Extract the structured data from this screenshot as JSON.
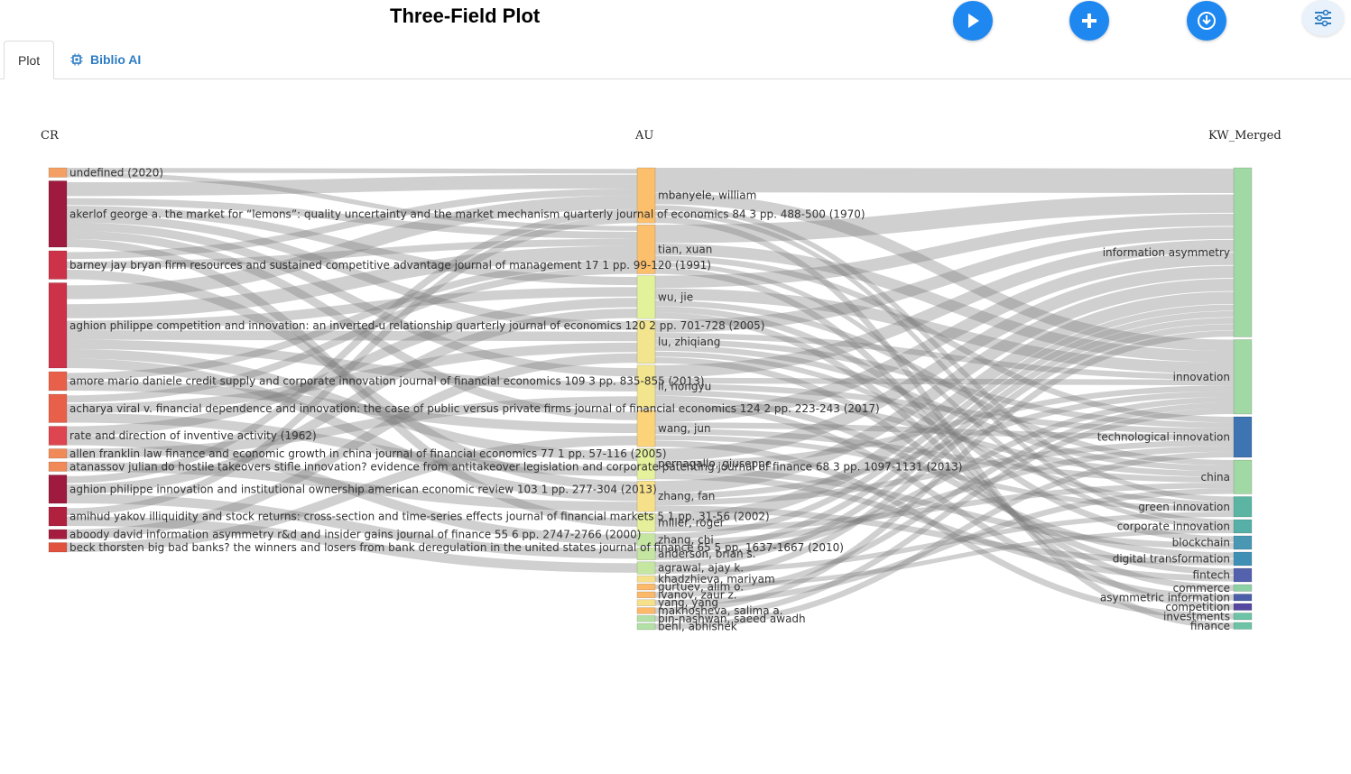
{
  "header": {
    "title": "Three-Field Plot"
  },
  "toolbar": [
    {
      "name": "play-icon"
    },
    {
      "name": "plus-icon"
    },
    {
      "name": "download-icon"
    },
    {
      "name": "sliders-icon"
    }
  ],
  "tabs": [
    {
      "label": "Plot",
      "active": true
    },
    {
      "label": "Biblio AI",
      "icon": "chip-icon",
      "active": false
    }
  ],
  "chart_data": {
    "type": "sankey",
    "columns": [
      "CR",
      "AU",
      "KW_Merged"
    ],
    "left": [
      {
        "label": "undefined (2020)",
        "color": "#f4a064",
        "weight": 1
      },
      {
        "label": "akerlof george a. the market for “lemons”: quality uncertainty and the market mechanism quarterly journal of economics 84 3 pp. 488-500 (1970)",
        "color": "#9e1a3f",
        "weight": 7
      },
      {
        "label": "barney jay bryan firm resources and sustained competitive advantage journal of management 17 1 pp. 99-120 (1991)",
        "color": "#cc3348",
        "weight": 3
      },
      {
        "label": "aghion philippe competition and innovation: an inverted-u relationship quarterly journal of economics 120 2 pp. 701-728 (2005)",
        "color": "#cc3348",
        "weight": 9
      },
      {
        "label": "amore mario daniele credit supply and corporate innovation journal of financial economics 109 3 pp. 835-855 (2013)",
        "color": "#e8604a",
        "weight": 2
      },
      {
        "label": "acharya viral v. financial dependence and innovation: the case of public versus private firms journal of financial economics 124 2 pp. 223-243 (2017)",
        "color": "#e8604a",
        "weight": 3
      },
      {
        "label": "rate and direction of inventive activity (1962)",
        "color": "#dd4550",
        "weight": 2
      },
      {
        "label": "allen franklin law finance and economic growth in china journal of financial economics 77 1 pp. 57-116 (2005)",
        "color": "#f08a58",
        "weight": 1
      },
      {
        "label": "atanassov julian do hostile takeovers stifle innovation? evidence from antitakeover legislation and corporate patenting journal of finance 68 3 pp. 1097-1131 (2013)",
        "color": "#f08a58",
        "weight": 1
      },
      {
        "label": "aghion philippe innovation and institutional ownership american economic review 103 1 pp. 277-304 (2013)",
        "color": "#9e1a3f",
        "weight": 3
      },
      {
        "label": "amihud yakov illiquidity and stock returns: cross-section and time-series effects journal of financial markets 5 1 pp. 31-56 (2002)",
        "color": "#b0213f",
        "weight": 2
      },
      {
        "label": "aboody david information asymmetry r&d and insider gains journal of finance 55 6 pp. 2747-2766 (2000)",
        "color": "#a41d3e",
        "weight": 1
      },
      {
        "label": "beck thorsten big bad banks? the winners and losers from bank deregulation in the united states journal of finance 65 5 pp. 1637-1667 (2010)",
        "color": "#e0513e",
        "weight": 1
      }
    ],
    "middle": [
      {
        "label": "mbanyele, william",
        "color": "#fcbf6b",
        "weight": 9
      },
      {
        "label": "tian, xuan",
        "color": "#fcbf6b",
        "weight": 8
      },
      {
        "label": "wu, jie",
        "color": "#e2f29b",
        "weight": 7
      },
      {
        "label": "lu, zhiqiang",
        "color": "#f2e58e",
        "weight": 7
      },
      {
        "label": "li, hongyu",
        "color": "#f2e58e",
        "weight": 7
      },
      {
        "label": "wang, jun",
        "color": "#fcd379",
        "weight": 6
      },
      {
        "label": "pernagallo, giuseppe",
        "color": "#e6f29b",
        "weight": 5
      },
      {
        "label": "zhang, fan",
        "color": "#f7e08a",
        "weight": 5
      },
      {
        "label": "miller, roger",
        "color": "#e6f09b",
        "weight": 3
      },
      {
        "label": "zhang, chi",
        "color": "#c5e6a1",
        "weight": 2
      },
      {
        "label": "anderson, brian s.",
        "color": "#c5e6a1",
        "weight": 2
      },
      {
        "label": "agrawal, ajay k.",
        "color": "#c5e6a1",
        "weight": 2
      },
      {
        "label": "khadzhieva, mariyam",
        "color": "#f7e08a",
        "weight": 1
      },
      {
        "label": "gurtuev, alim o.",
        "color": "#fcb96a",
        "weight": 1
      },
      {
        "label": "ivanov, zaur z.",
        "color": "#fcb96a",
        "weight": 1
      },
      {
        "label": "yang, yang",
        "color": "#f7e08a",
        "weight": 1
      },
      {
        "label": "makhosheva, salima a.",
        "color": "#fcb96a",
        "weight": 1
      },
      {
        "label": "bin-nashwan, saeed awadh",
        "color": "#b3e0a5",
        "weight": 1
      },
      {
        "label": "behl, abhishek",
        "color": "#b3e0a5",
        "weight": 1
      }
    ],
    "right": [
      {
        "label": "information asymmetry",
        "color": "#a0d9a3",
        "weight": 25
      },
      {
        "label": "innovation",
        "color": "#a0d9a3",
        "weight": 11
      },
      {
        "label": "technological innovation",
        "color": "#3e74b1",
        "weight": 6
      },
      {
        "label": "china",
        "color": "#a0d9a3",
        "weight": 5
      },
      {
        "label": "green innovation",
        "color": "#5bb5a2",
        "weight": 3
      },
      {
        "label": "corporate innovation",
        "color": "#57b0a7",
        "weight": 2
      },
      {
        "label": "blockchain",
        "color": "#4997b3",
        "weight": 2
      },
      {
        "label": "digital transformation",
        "color": "#4090b5",
        "weight": 2
      },
      {
        "label": "fintech",
        "color": "#5462ad",
        "weight": 2
      },
      {
        "label": "commerce",
        "color": "#8ed1a5",
        "weight": 1
      },
      {
        "label": "asymmetric information",
        "color": "#4a5fa8",
        "weight": 1
      },
      {
        "label": "competition",
        "color": "#5548a0",
        "weight": 1
      },
      {
        "label": "investments",
        "color": "#6dc3a6",
        "weight": 1
      },
      {
        "label": "finance",
        "color": "#6dc3a6",
        "weight": 1
      }
    ],
    "links_cr_au": [
      [
        0,
        0,
        1
      ],
      [
        0,
        1,
        1
      ],
      [
        1,
        0,
        2
      ],
      [
        1,
        1,
        1
      ],
      [
        1,
        2,
        1
      ],
      [
        1,
        3,
        1
      ],
      [
        1,
        4,
        1
      ],
      [
        1,
        5,
        1
      ],
      [
        1,
        8,
        1
      ],
      [
        2,
        0,
        1
      ],
      [
        2,
        1,
        1
      ],
      [
        2,
        7,
        1
      ],
      [
        3,
        0,
        2
      ],
      [
        3,
        1,
        2
      ],
      [
        3,
        2,
        1
      ],
      [
        3,
        3,
        1
      ],
      [
        3,
        4,
        1
      ],
      [
        3,
        6,
        1
      ],
      [
        3,
        7,
        1
      ],
      [
        4,
        1,
        1
      ],
      [
        4,
        5,
        1
      ],
      [
        5,
        1,
        1
      ],
      [
        5,
        3,
        1
      ],
      [
        5,
        6,
        1
      ],
      [
        6,
        2,
        1
      ],
      [
        6,
        9,
        1
      ],
      [
        7,
        4,
        1
      ],
      [
        8,
        7,
        1
      ],
      [
        9,
        0,
        1
      ],
      [
        9,
        2,
        1
      ],
      [
        9,
        10,
        1
      ],
      [
        10,
        0,
        1
      ],
      [
        10,
        11,
        1
      ],
      [
        11,
        3,
        1
      ],
      [
        12,
        5,
        1
      ]
    ],
    "links_au_kw": [
      [
        0,
        0,
        4
      ],
      [
        0,
        1,
        2
      ],
      [
        0,
        4,
        1
      ],
      [
        0,
        5,
        1
      ],
      [
        0,
        13,
        1
      ],
      [
        1,
        0,
        3
      ],
      [
        1,
        1,
        2
      ],
      [
        1,
        2,
        1
      ],
      [
        1,
        5,
        1
      ],
      [
        1,
        11,
        1
      ],
      [
        2,
        0,
        2
      ],
      [
        2,
        1,
        2
      ],
      [
        2,
        3,
        1
      ],
      [
        2,
        6,
        1
      ],
      [
        2,
        9,
        1
      ],
      [
        3,
        0,
        2
      ],
      [
        3,
        1,
        1
      ],
      [
        3,
        2,
        1
      ],
      [
        3,
        3,
        1
      ],
      [
        3,
        4,
        1
      ],
      [
        3,
        8,
        1
      ],
      [
        4,
        0,
        2
      ],
      [
        4,
        1,
        1
      ],
      [
        4,
        2,
        1
      ],
      [
        4,
        3,
        1
      ],
      [
        4,
        7,
        1
      ],
      [
        4,
        10,
        1
      ],
      [
        5,
        0,
        2
      ],
      [
        5,
        2,
        1
      ],
      [
        5,
        3,
        1
      ],
      [
        5,
        4,
        1
      ],
      [
        5,
        12,
        1
      ],
      [
        6,
        0,
        2
      ],
      [
        6,
        1,
        1
      ],
      [
        6,
        6,
        1
      ],
      [
        6,
        8,
        1
      ],
      [
        7,
        0,
        2
      ],
      [
        7,
        1,
        1
      ],
      [
        7,
        2,
        1
      ],
      [
        7,
        7,
        1
      ],
      [
        8,
        0,
        2
      ],
      [
        8,
        3,
        1
      ],
      [
        9,
        0,
        1
      ],
      [
        9,
        2,
        1
      ],
      [
        10,
        0,
        1
      ],
      [
        10,
        1,
        1
      ],
      [
        11,
        0,
        1
      ],
      [
        11,
        4,
        1
      ],
      [
        12,
        0,
        1
      ],
      [
        13,
        5,
        1
      ],
      [
        14,
        1,
        1
      ],
      [
        15,
        3,
        1
      ],
      [
        16,
        0,
        1
      ],
      [
        17,
        1,
        1
      ],
      [
        18,
        2,
        1
      ]
    ]
  }
}
